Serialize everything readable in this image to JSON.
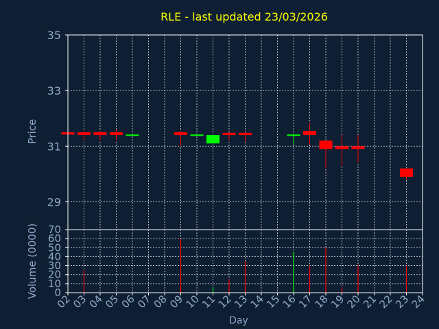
{
  "colors": {
    "background": "#0f1f33",
    "frame": "#ffffff",
    "grid": "#ffffff",
    "title": "#ffff00",
    "axis_text": "#8ea8c8",
    "up": "#00ff00",
    "down": "#ff0000"
  },
  "chart_data": [
    {
      "type": "candlestick",
      "title": "RLE - last updated 23/03/2026",
      "ylabel": "Price",
      "xlabel": "",
      "ylim": [
        28,
        35
      ],
      "yticks": [
        29,
        31,
        33,
        35
      ],
      "grid": true,
      "x_days": [
        2,
        3,
        4,
        5,
        6,
        7,
        8,
        9,
        10,
        11,
        12,
        13,
        14,
        15,
        16,
        17,
        18,
        19,
        20,
        21,
        22,
        23,
        24
      ],
      "candles": [
        {
          "day": 2,
          "open": 31.5,
          "high": 31.55,
          "low": 31.4,
          "close": 31.42
        },
        {
          "day": 3,
          "open": 31.5,
          "high": 31.55,
          "low": 31.2,
          "close": 31.4
        },
        {
          "day": 4,
          "open": 31.5,
          "high": 31.55,
          "low": 31.2,
          "close": 31.4
        },
        {
          "day": 5,
          "open": 31.5,
          "high": 31.6,
          "low": 31.2,
          "close": 31.4
        },
        {
          "day": 6,
          "open": 31.38,
          "high": 31.42,
          "low": 31.38,
          "close": 31.42
        },
        {
          "day": 9,
          "open": 31.5,
          "high": 31.55,
          "low": 31.0,
          "close": 31.4
        },
        {
          "day": 10,
          "open": 31.38,
          "high": 31.42,
          "low": 31.38,
          "close": 31.42
        },
        {
          "day": 11,
          "open": 31.1,
          "high": 31.45,
          "low": 31.1,
          "close": 31.4
        },
        {
          "day": 12,
          "open": 31.48,
          "high": 31.5,
          "low": 31.2,
          "close": 31.4
        },
        {
          "day": 13,
          "open": 31.48,
          "high": 31.5,
          "low": 31.15,
          "close": 31.4
        },
        {
          "day": 16,
          "open": 31.38,
          "high": 31.42,
          "low": 31.05,
          "close": 31.42
        },
        {
          "day": 17,
          "open": 31.55,
          "high": 31.85,
          "low": 31.05,
          "close": 31.4
        },
        {
          "day": 18,
          "open": 31.2,
          "high": 31.2,
          "low": 30.2,
          "close": 30.9
        },
        {
          "day": 19,
          "open": 31.0,
          "high": 31.4,
          "low": 30.3,
          "close": 30.9
        },
        {
          "day": 20,
          "open": 31.0,
          "high": 31.4,
          "low": 30.4,
          "close": 30.9
        },
        {
          "day": 23,
          "open": 30.2,
          "high": 30.2,
          "low": 29.8,
          "close": 29.9
        }
      ]
    },
    {
      "type": "bar",
      "title": "",
      "ylabel": "Volume (0000)",
      "xlabel": "Day",
      "ylim": [
        0,
        70
      ],
      "yticks": [
        0,
        10,
        20,
        30,
        40,
        50,
        60,
        70
      ],
      "grid": true,
      "xticks": [
        "02",
        "03",
        "04",
        "05",
        "06",
        "07",
        "08",
        "09",
        "10",
        "11",
        "12",
        "13",
        "14",
        "15",
        "16",
        "17",
        "18",
        "19",
        "20",
        "21",
        "22",
        "23",
        "24"
      ],
      "bars": [
        {
          "day": 3,
          "value": 25,
          "direction": "down"
        },
        {
          "day": 9,
          "value": 60,
          "direction": "down"
        },
        {
          "day": 11,
          "value": 6,
          "direction": "up"
        },
        {
          "day": 12,
          "value": 15,
          "direction": "down"
        },
        {
          "day": 13,
          "value": 35,
          "direction": "down"
        },
        {
          "day": 16,
          "value": 45,
          "direction": "up"
        },
        {
          "day": 17,
          "value": 30,
          "direction": "down"
        },
        {
          "day": 18,
          "value": 50,
          "direction": "down"
        },
        {
          "day": 19,
          "value": 6,
          "direction": "down"
        },
        {
          "day": 20,
          "value": 30,
          "direction": "down"
        },
        {
          "day": 23,
          "value": 30,
          "direction": "down"
        }
      ]
    }
  ]
}
